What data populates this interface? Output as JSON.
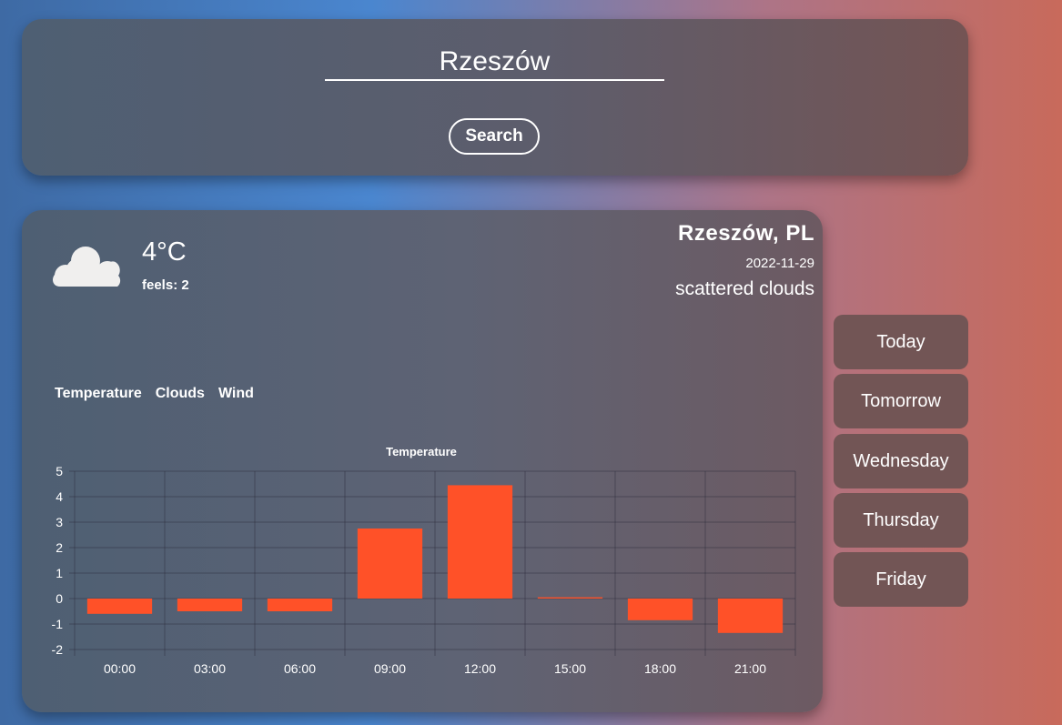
{
  "search": {
    "value": "Rzeszów",
    "button_label": "Search"
  },
  "current": {
    "temperature": "4°C",
    "feels": "feels: 2",
    "location": "Rzeszów, PL",
    "date": "2022-11-29",
    "description": "scattered clouds",
    "icon": "cloud-icon"
  },
  "chart_tabs": [
    "Temperature",
    "Clouds",
    "Wind"
  ],
  "days": [
    "Today",
    "Tomorrow",
    "Wednesday",
    "Thursday",
    "Friday"
  ],
  "colors": {
    "bar": "#ff5128",
    "day_button": "#725555"
  },
  "chart_data": {
    "type": "bar",
    "title": "Temperature",
    "categories": [
      "00:00",
      "03:00",
      "06:00",
      "09:00",
      "12:00",
      "15:00",
      "18:00",
      "21:00"
    ],
    "values": [
      -0.6,
      -0.5,
      -0.5,
      2.75,
      4.45,
      0.05,
      -0.85,
      -1.35
    ],
    "ylim": [
      -2,
      5
    ],
    "yticks": [
      5,
      4,
      3,
      2,
      1,
      0,
      -1,
      -2
    ],
    "grid": true,
    "legend": "none"
  }
}
